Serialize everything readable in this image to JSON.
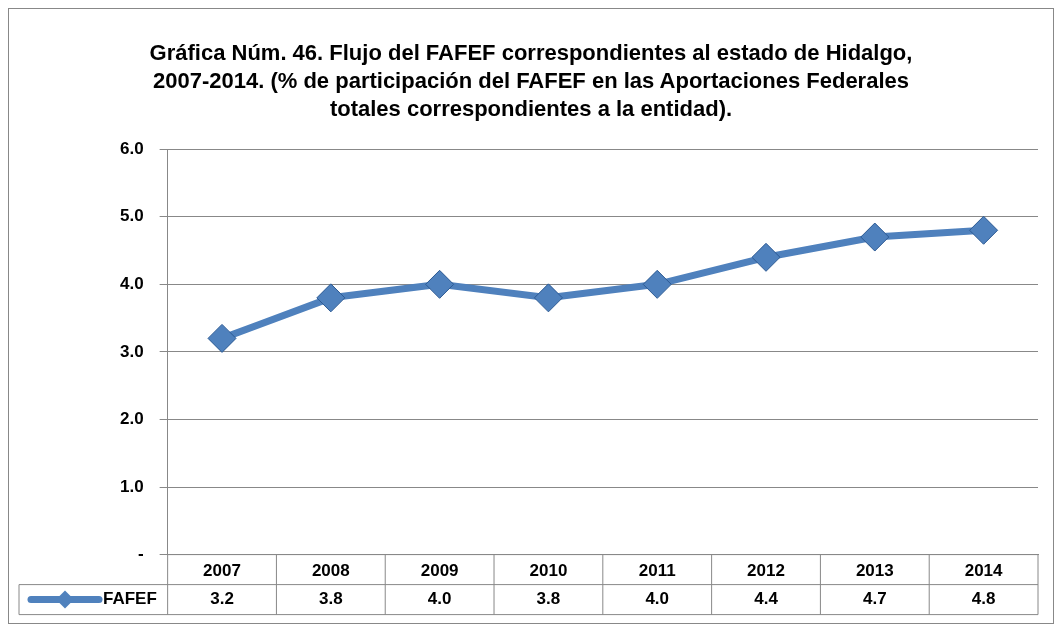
{
  "chart_data": {
    "type": "line",
    "title": "Gráfica Núm. 46. Flujo del FAFEF correspondientes al estado de Hidalgo, 2007-2014. (%  de participación del FAFEF en las Aportaciones Federales totales correspondientes a la entidad).",
    "categories": [
      "2007",
      "2008",
      "2009",
      "2010",
      "2011",
      "2012",
      "2013",
      "2014"
    ],
    "series": [
      {
        "name": "FAFEF",
        "color": "#4f81bd",
        "values": [
          3.2,
          3.8,
          4.0,
          3.8,
          4.0,
          4.4,
          4.7,
          4.8
        ],
        "value_labels": [
          "3.2",
          "3.8",
          "4.0",
          "3.8",
          "4.0",
          "4.4",
          "4.7",
          "4.8"
        ]
      }
    ],
    "ylim": [
      0,
      6
    ],
    "yticks": [
      {
        "value": 0,
        "label": "-"
      },
      {
        "value": 1,
        "label": "1.0"
      },
      {
        "value": 2,
        "label": "2.0"
      },
      {
        "value": 3,
        "label": "3.0"
      },
      {
        "value": 4,
        "label": "4.0"
      },
      {
        "value": 5,
        "label": "5.0"
      },
      {
        "value": 6,
        "label": "6.0"
      }
    ],
    "grid": "y",
    "legend": "bottom",
    "marker": "diamond",
    "line_style": "solid"
  }
}
